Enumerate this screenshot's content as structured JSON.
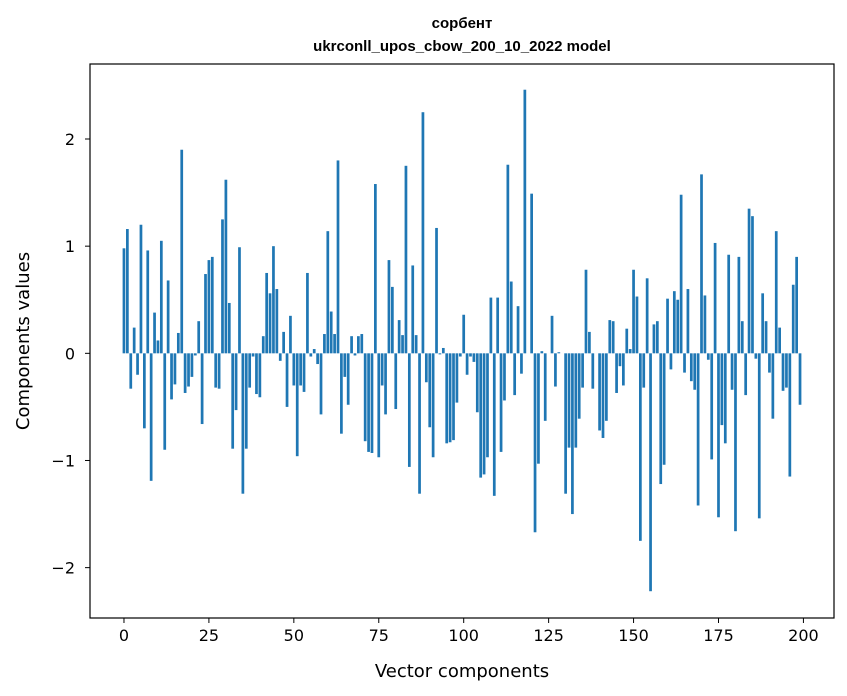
{
  "chart_data": {
    "type": "bar",
    "title": "сорбент",
    "subtitle": "ukrconll_upos_cbow_200_10_2022 model",
    "xlabel": "Vector components",
    "ylabel": "Components values",
    "xlim": [
      -10,
      209
    ],
    "ylim": [
      -2.47,
      2.7
    ],
    "xticks": [
      0,
      25,
      50,
      75,
      100,
      125,
      150,
      175,
      200
    ],
    "yticks": [
      -2,
      -1,
      0,
      1,
      2
    ],
    "ytick_labels": [
      "−2",
      "−1",
      "0",
      "1",
      "2"
    ],
    "grid": false,
    "bar_color": "#1f77b4",
    "values": [
      0.98,
      1.16,
      -0.33,
      0.24,
      -0.2,
      1.2,
      -0.7,
      0.96,
      -1.19,
      0.38,
      0.12,
      1.05,
      -0.9,
      0.68,
      -0.43,
      -0.29,
      0.19,
      1.9,
      -0.37,
      -0.31,
      -0.22,
      -0.02,
      0.3,
      -0.66,
      0.74,
      0.87,
      0.9,
      -0.32,
      -0.33,
      1.25,
      1.62,
      0.47,
      -0.89,
      -0.53,
      0.99,
      -1.31,
      -0.89,
      -0.32,
      -0.03,
      -0.38,
      -0.41,
      0.16,
      0.75,
      0.56,
      1.0,
      0.6,
      -0.07,
      0.2,
      -0.5,
      0.35,
      -0.3,
      -0.96,
      -0.3,
      -0.36,
      0.75,
      -0.03,
      0.04,
      -0.1,
      -0.57,
      0.18,
      1.14,
      0.39,
      0.18,
      1.8,
      -0.75,
      -0.22,
      -0.48,
      0.16,
      -0.02,
      0.16,
      0.18,
      -0.82,
      -0.92,
      -0.93,
      1.58,
      -0.97,
      -0.3,
      -0.57,
      0.87,
      0.62,
      -0.52,
      0.31,
      0.17,
      1.75,
      -1.06,
      0.82,
      0.17,
      -1.31,
      2.25,
      -0.27,
      -0.69,
      -0.97,
      1.17,
      -0.01,
      0.05,
      -0.84,
      -0.83,
      -0.81,
      -0.46,
      -0.03,
      0.36,
      -0.2,
      -0.03,
      -0.08,
      -0.55,
      -1.16,
      -1.13,
      -0.97,
      0.52,
      -1.33,
      0.52,
      -0.92,
      -0.44,
      1.76,
      0.67,
      -0.39,
      0.44,
      -0.19,
      2.46,
      0.0,
      1.49,
      -1.67,
      -1.03,
      0.02,
      -0.63,
      0.0,
      0.35,
      -0.31,
      0.01,
      0.0,
      -1.31,
      -0.88,
      -1.5,
      -0.88,
      -0.61,
      -0.32,
      0.78,
      0.2,
      -0.33,
      0.0,
      -0.72,
      -0.79,
      -0.63,
      0.31,
      0.3,
      -0.37,
      -0.12,
      -0.3,
      0.23,
      0.04,
      0.78,
      0.53,
      -1.75,
      -0.32,
      0.7,
      -2.22,
      0.27,
      0.3,
      -1.22,
      -1.04,
      0.51,
      -0.15,
      0.58,
      0.5,
      1.48,
      -0.18,
      0.6,
      -0.26,
      -0.34,
      -1.42,
      1.67,
      0.54,
      -0.06,
      -0.99,
      1.03,
      -1.53,
      -0.67,
      -0.84,
      0.92,
      -0.34,
      -1.66,
      0.9,
      0.3,
      -0.39,
      1.35,
      1.28,
      -0.05,
      -1.54,
      0.56,
      0.3,
      -0.18,
      -0.61,
      1.14,
      0.24,
      -0.35,
      -0.32,
      -1.15,
      0.64,
      0.9,
      -0.48
    ]
  }
}
